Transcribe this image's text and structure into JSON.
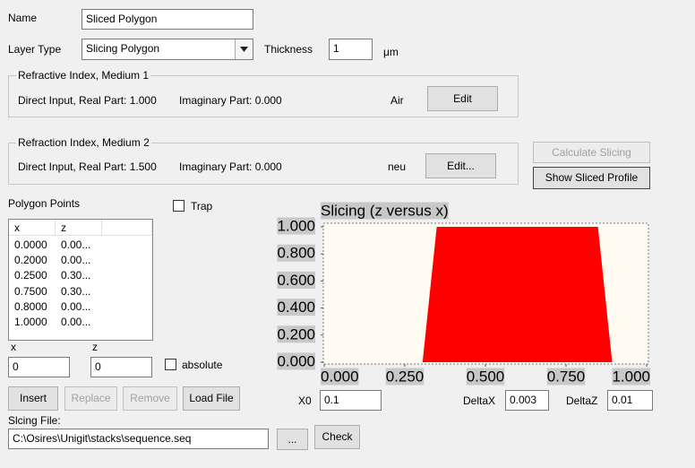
{
  "form": {
    "name_label": "Name",
    "name_value": "Sliced Polygon",
    "layer_type_label": "Layer Type",
    "layer_type_value": "Slicing Polygon",
    "thickness_label": "Thickness",
    "thickness_value": "1",
    "thickness_unit": "μm",
    "medium1": {
      "title": "Refractive Index, Medium 1",
      "real": "Direct Input, Real Part: 1.000",
      "imag": "Imaginary Part: 0.000",
      "material": "Air",
      "button": "Edit"
    },
    "medium2": {
      "title": "Refraction Index, Medium 2",
      "real": "Direct Input, Real Part: 1.500",
      "imag": "Imaginary Part: 0.000",
      "material": "neu",
      "button": "Edit..."
    },
    "calculate_button": "Calculate Slicing",
    "show_button": "Show Sliced Profile",
    "polygon_label": "Polygon Points",
    "trap_label": "Trap",
    "table": {
      "columns": [
        "x",
        "z"
      ],
      "rows": [
        [
          "0.0000",
          "0.00..."
        ],
        [
          "0.2000",
          "0.00..."
        ],
        [
          "0.2500",
          "0.30..."
        ],
        [
          "0.7500",
          "0.30..."
        ],
        [
          "0.8000",
          "0.00..."
        ],
        [
          "1.0000",
          "0.00..."
        ]
      ]
    },
    "x_label": "x",
    "x_value": "0",
    "z_label": "z",
    "z_value": "0",
    "absolute_label": "absolute",
    "buttons": [
      "Insert",
      "Replace",
      "Remove",
      "Load File"
    ],
    "slicing_file_label": "Slcing File:",
    "slicing_file_value": "C:\\Osires\\Unigit\\stacks\\sequence.seq",
    "browse_button": "...",
    "check_button": "Check",
    "x0_label": "X0",
    "x0_value": "0.1",
    "deltax_label": "DeltaX",
    "deltax_value": "0.003",
    "deltaz_label": "DeltaZ",
    "deltaz_value": "0.01"
  },
  "chart_data": {
    "type": "area",
    "title": "Slicing (z versus x)",
    "x": [
      0.305,
      0.349,
      0.849,
      0.893
    ],
    "values": [
      0,
      1,
      1,
      0
    ],
    "color": "#ff0000",
    "background": "#fffbf0",
    "xlim": [
      0,
      1
    ],
    "ylim": [
      0,
      1
    ],
    "xticks": [
      {
        "value": 0,
        "label": "0.000"
      },
      {
        "value": 0.25,
        "label": "0.250"
      },
      {
        "value": 0.5,
        "label": "0.500"
      },
      {
        "value": 0.75,
        "label": "0.750"
      },
      {
        "value": 1,
        "label": "1.000"
      }
    ],
    "yticks": [
      {
        "value": 0,
        "label": "0.000"
      },
      {
        "value": 0.2,
        "label": "0.200"
      },
      {
        "value": 0.4,
        "label": "0.400"
      },
      {
        "value": 0.6,
        "label": "0.600"
      },
      {
        "value": 0.8,
        "label": "0.800"
      },
      {
        "value": 1,
        "label": "1.000"
      }
    ]
  }
}
